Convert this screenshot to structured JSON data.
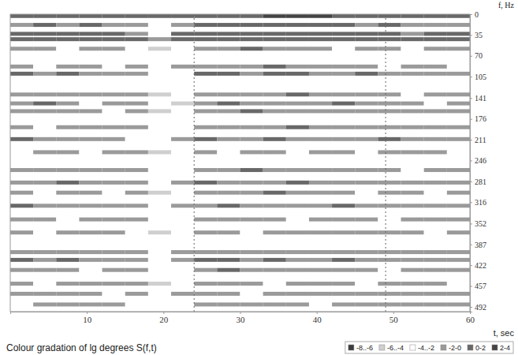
{
  "chart_data": {
    "type": "heatmap",
    "x_label": "t, sec",
    "y_label": "f, Hz",
    "xlim": [
      0,
      60
    ],
    "xticks": [
      10,
      20,
      30,
      40,
      50,
      60
    ],
    "ylim": [
      0,
      500
    ],
    "yticks": [
      0,
      35,
      70,
      105,
      141,
      176,
      211,
      246,
      281,
      316,
      352,
      387,
      422,
      457,
      492
    ],
    "vlines": [
      24,
      49
    ],
    "cells": {
      "t": [
        0,
        3,
        6,
        9,
        12,
        15,
        18,
        21,
        24,
        27,
        30,
        33,
        36,
        39,
        42,
        45,
        48,
        51,
        54,
        57,
        60
      ],
      "f": [
        3,
        18,
        33,
        42,
        58,
        88,
        100,
        135,
        150,
        163,
        190,
        210,
        232,
        262,
        283,
        300,
        322,
        345,
        367,
        400,
        413,
        430,
        453,
        470,
        488
      ],
      "values": [
        [
          1,
          1,
          1,
          1,
          1,
          1,
          0,
          0,
          1,
          1,
          1,
          2,
          2,
          2,
          1,
          1,
          1,
          1,
          1,
          1
        ],
        [
          -1,
          0,
          -1,
          0,
          -1,
          -1,
          -3,
          -1,
          0,
          0,
          0,
          1,
          1,
          0,
          0,
          -1,
          0,
          -1,
          -1,
          -1
        ],
        [
          0,
          1,
          0,
          0,
          0,
          -1,
          -3,
          0,
          0,
          1,
          1,
          1,
          1,
          0,
          0,
          0,
          0,
          -1,
          0,
          0
        ],
        [
          1,
          1,
          1,
          1,
          0,
          0,
          -1,
          0,
          1,
          1,
          1,
          1,
          1,
          1,
          1,
          0,
          1,
          0,
          0,
          1
        ],
        [
          -1,
          -1,
          -3,
          -1,
          -1,
          -3,
          -5,
          -3,
          -1,
          -1,
          0,
          -1,
          -1,
          -1,
          -3,
          -1,
          -1,
          -3,
          -1,
          -1
        ],
        [
          -1,
          -3,
          -1,
          -1,
          -3,
          -1,
          -3,
          -1,
          -1,
          -1,
          -1,
          0,
          -1,
          -1,
          -1,
          -1,
          -3,
          -1,
          -1,
          -3
        ],
        [
          0,
          -1,
          0,
          -1,
          -1,
          -1,
          -3,
          -3,
          0,
          0,
          -1,
          0,
          0,
          -1,
          -1,
          0,
          -1,
          -1,
          -1,
          -1
        ],
        [
          -1,
          -1,
          -1,
          -1,
          -1,
          -1,
          -5,
          -3,
          -1,
          -1,
          -1,
          -1,
          0,
          -1,
          -1,
          -1,
          -1,
          -3,
          -1,
          -1
        ],
        [
          -1,
          0,
          -1,
          -3,
          -1,
          -1,
          -3,
          -5,
          -1,
          0,
          -1,
          -1,
          -1,
          -1,
          0,
          -1,
          -1,
          -1,
          -3,
          -1
        ],
        [
          -1,
          -1,
          -1,
          -1,
          -3,
          -1,
          -5,
          -3,
          -1,
          -1,
          0,
          -1,
          -1,
          -1,
          -1,
          -1,
          -1,
          -1,
          -1,
          -1
        ],
        [
          -1,
          -3,
          -1,
          -1,
          -1,
          -1,
          -3,
          -3,
          -1,
          -1,
          -1,
          -1,
          0,
          -1,
          -1,
          -1,
          -1,
          -1,
          -1,
          -1
        ],
        [
          0,
          -1,
          -1,
          -1,
          -1,
          -3,
          -3,
          -1,
          0,
          -1,
          -1,
          0,
          -1,
          -1,
          -1,
          -1,
          0,
          -1,
          -1,
          -1
        ],
        [
          -3,
          -1,
          -1,
          -3,
          -1,
          -1,
          -5,
          -3,
          -1,
          -3,
          -1,
          -1,
          -3,
          -1,
          -1,
          -3,
          -1,
          -1,
          -1,
          -3
        ],
        [
          -1,
          -1,
          -1,
          -1,
          -1,
          -1,
          -3,
          -3,
          -1,
          -1,
          0,
          -1,
          -1,
          -1,
          -1,
          -1,
          -1,
          -3,
          -1,
          -1
        ],
        [
          -1,
          -1,
          0,
          -1,
          -1,
          -1,
          -3,
          -1,
          0,
          -1,
          -1,
          -1,
          0,
          -1,
          -1,
          -1,
          -1,
          -1,
          -1,
          -1
        ],
        [
          -1,
          -3,
          -1,
          -1,
          -3,
          -1,
          -5,
          -3,
          -1,
          -1,
          -1,
          0,
          -1,
          -1,
          -1,
          -3,
          -1,
          -1,
          -3,
          -1
        ],
        [
          0,
          -1,
          -1,
          -1,
          -1,
          -1,
          -3,
          -1,
          -1,
          0,
          -1,
          -1,
          -1,
          -1,
          0,
          -1,
          -1,
          -1,
          -1,
          -1
        ],
        [
          -1,
          -1,
          -3,
          -1,
          -1,
          -1,
          -3,
          -3,
          -1,
          -1,
          -1,
          -1,
          -3,
          -1,
          -1,
          -1,
          -3,
          -1,
          -1,
          -1
        ],
        [
          -1,
          -3,
          -1,
          -1,
          -1,
          -3,
          -5,
          -3,
          -1,
          -1,
          -3,
          -1,
          -1,
          -1,
          -1,
          -1,
          -1,
          -1,
          -3,
          -1
        ],
        [
          -1,
          -1,
          -1,
          -1,
          -1,
          -1,
          -3,
          -1,
          -1,
          -1,
          -1,
          -1,
          -1,
          -1,
          -1,
          -1,
          -1,
          -1,
          -1,
          -1
        ],
        [
          0,
          -1,
          0,
          -1,
          -1,
          -1,
          -3,
          -1,
          0,
          0,
          -1,
          0,
          -1,
          -1,
          0,
          -1,
          -1,
          -1,
          -1,
          -1
        ],
        [
          -1,
          -1,
          -1,
          -3,
          -1,
          -1,
          -3,
          -3,
          -1,
          0,
          -1,
          -1,
          -1,
          -1,
          -1,
          -1,
          -3,
          -1,
          -1,
          -1
        ],
        [
          -1,
          -3,
          -1,
          -1,
          -1,
          -1,
          -5,
          -3,
          -1,
          -1,
          -1,
          -3,
          -1,
          -1,
          -1,
          -3,
          -1,
          -1,
          -1,
          -3
        ],
        [
          -1,
          -1,
          -1,
          -1,
          -3,
          -1,
          -3,
          -1,
          -1,
          -1,
          -3,
          -1,
          -1,
          -1,
          -1,
          -1,
          -1,
          -1,
          -1,
          -1
        ],
        [
          -3,
          -1,
          -1,
          -1,
          -1,
          -3,
          -3,
          -3,
          -1,
          -1,
          -1,
          -1,
          -1,
          -3,
          -1,
          -1,
          -1,
          -1,
          -1,
          -1
        ]
      ]
    },
    "color_bar": {
      "title": "Colour gradation of lg degrees S(f,t)",
      "bins": [
        -8,
        -6,
        -4,
        -2,
        0,
        2,
        4
      ],
      "labels": [
        "-8..-6",
        "-6..-4",
        "-4..-2",
        "-2-0",
        "0-2",
        "2-4"
      ],
      "colors": [
        "#3c3c3c",
        "#cfcfcf",
        "#ffffff",
        "#9a9a9a",
        "#686868",
        "#444444"
      ]
    }
  }
}
